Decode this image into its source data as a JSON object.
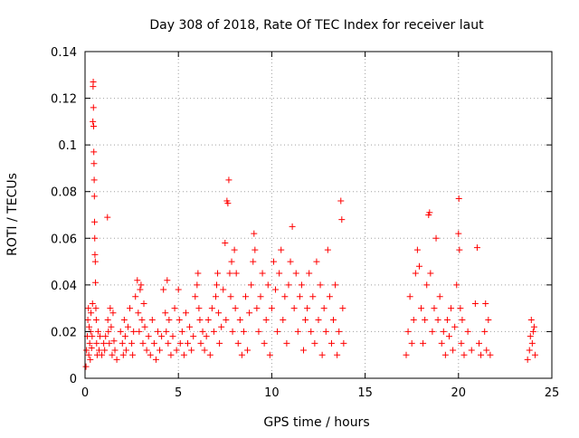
{
  "chart_data": {
    "type": "scatter",
    "title": "Day 308 of 2018, Rate Of TEC Index for receiver laut",
    "xlabel": "GPS time / hours",
    "ylabel": "ROTI / TECUs",
    "xlim": [
      0,
      25
    ],
    "ylim": [
      0,
      0.14
    ],
    "x_ticks": [
      0,
      5,
      10,
      15,
      20,
      25
    ],
    "x_tick_labels": [
      "0",
      "5",
      "10",
      "15",
      "20",
      "25"
    ],
    "y_ticks": [
      0,
      0.02,
      0.04,
      0.06,
      0.08,
      0.1,
      0.12,
      0.14
    ],
    "y_tick_labels": [
      "0",
      "0.02",
      "0.04",
      "0.06",
      "0.08",
      "0.1",
      "0.12",
      "0.14"
    ],
    "grid": true,
    "marker": "+",
    "marker_color": "#ff0000",
    "series": [
      {
        "name": "ROTI",
        "points": [
          [
            0.05,
            0.005
          ],
          [
            0.08,
            0.012
          ],
          [
            0.12,
            0.018
          ],
          [
            0.15,
            0.025
          ],
          [
            0.18,
            0.03
          ],
          [
            0.2,
            0.01
          ],
          [
            0.22,
            0.022
          ],
          [
            0.25,
            0.015
          ],
          [
            0.28,
            0.008
          ],
          [
            0.3,
            0.02
          ],
          [
            0.32,
            0.028
          ],
          [
            0.35,
            0.013
          ],
          [
            0.38,
            0.018
          ],
          [
            0.4,
            0.032
          ],
          [
            0.42,
            0.11
          ],
          [
            0.43,
            0.125
          ],
          [
            0.44,
            0.127
          ],
          [
            0.45,
            0.116
          ],
          [
            0.46,
            0.108
          ],
          [
            0.47,
            0.097
          ],
          [
            0.48,
            0.092
          ],
          [
            0.49,
            0.085
          ],
          [
            0.5,
            0.078
          ],
          [
            0.51,
            0.067
          ],
          [
            0.52,
            0.06
          ],
          [
            0.53,
            0.053
          ],
          [
            0.55,
            0.05
          ],
          [
            0.56,
            0.041
          ],
          [
            0.58,
            0.03
          ],
          [
            0.6,
            0.025
          ],
          [
            0.62,
            0.015
          ],
          [
            0.65,
            0.01
          ],
          [
            0.7,
            0.02
          ],
          [
            0.75,
            0.012
          ],
          [
            0.8,
            0.018
          ],
          [
            0.9,
            0.01
          ],
          [
            1.0,
            0.015
          ],
          [
            1.05,
            0.012
          ],
          [
            1.1,
            0.018
          ],
          [
            1.2,
            0.069
          ],
          [
            1.22,
            0.025
          ],
          [
            1.25,
            0.02
          ],
          [
            1.3,
            0.015
          ],
          [
            1.35,
            0.03
          ],
          [
            1.4,
            0.022
          ],
          [
            1.45,
            0.01
          ],
          [
            1.5,
            0.028
          ],
          [
            1.55,
            0.016
          ],
          [
            1.6,
            0.012
          ],
          [
            1.7,
            0.008
          ],
          [
            1.9,
            0.02
          ],
          [
            2.0,
            0.015
          ],
          [
            2.05,
            0.01
          ],
          [
            2.1,
            0.025
          ],
          [
            2.15,
            0.018
          ],
          [
            2.2,
            0.012
          ],
          [
            2.3,
            0.022
          ],
          [
            2.4,
            0.03
          ],
          [
            2.5,
            0.015
          ],
          [
            2.55,
            0.01
          ],
          [
            2.6,
            0.02
          ],
          [
            2.7,
            0.035
          ],
          [
            2.8,
            0.042
          ],
          [
            2.85,
            0.028
          ],
          [
            2.9,
            0.02
          ],
          [
            2.95,
            0.038
          ],
          [
            3.0,
            0.04
          ],
          [
            3.05,
            0.025
          ],
          [
            3.1,
            0.015
          ],
          [
            3.15,
            0.032
          ],
          [
            3.2,
            0.022
          ],
          [
            3.3,
            0.012
          ],
          [
            3.4,
            0.018
          ],
          [
            3.5,
            0.01
          ],
          [
            3.6,
            0.025
          ],
          [
            3.7,
            0.015
          ],
          [
            3.8,
            0.008
          ],
          [
            3.9,
            0.02
          ],
          [
            4.0,
            0.012
          ],
          [
            4.1,
            0.018
          ],
          [
            4.2,
            0.038
          ],
          [
            4.3,
            0.028
          ],
          [
            4.35,
            0.02
          ],
          [
            4.4,
            0.042
          ],
          [
            4.45,
            0.015
          ],
          [
            4.5,
            0.025
          ],
          [
            4.6,
            0.01
          ],
          [
            4.7,
            0.018
          ],
          [
            4.8,
            0.03
          ],
          [
            4.9,
            0.012
          ],
          [
            5.0,
            0.038
          ],
          [
            5.05,
            0.025
          ],
          [
            5.1,
            0.015
          ],
          [
            5.2,
            0.02
          ],
          [
            5.3,
            0.01
          ],
          [
            5.4,
            0.028
          ],
          [
            5.5,
            0.015
          ],
          [
            5.6,
            0.022
          ],
          [
            5.7,
            0.012
          ],
          [
            5.8,
            0.018
          ],
          [
            5.9,
            0.035
          ],
          [
            6.0,
            0.04
          ],
          [
            6.05,
            0.045
          ],
          [
            6.1,
            0.03
          ],
          [
            6.15,
            0.025
          ],
          [
            6.2,
            0.015
          ],
          [
            6.3,
            0.02
          ],
          [
            6.4,
            0.012
          ],
          [
            6.5,
            0.018
          ],
          [
            6.6,
            0.025
          ],
          [
            6.7,
            0.01
          ],
          [
            6.8,
            0.03
          ],
          [
            6.9,
            0.02
          ],
          [
            7.0,
            0.035
          ],
          [
            7.05,
            0.04
          ],
          [
            7.1,
            0.045
          ],
          [
            7.15,
            0.028
          ],
          [
            7.2,
            0.015
          ],
          [
            7.3,
            0.022
          ],
          [
            7.4,
            0.038
          ],
          [
            7.5,
            0.058
          ],
          [
            7.55,
            0.025
          ],
          [
            7.6,
            0.076
          ],
          [
            7.65,
            0.075
          ],
          [
            7.7,
            0.085
          ],
          [
            7.75,
            0.045
          ],
          [
            7.8,
            0.035
          ],
          [
            7.85,
            0.05
          ],
          [
            7.9,
            0.02
          ],
          [
            8.0,
            0.055
          ],
          [
            8.05,
            0.03
          ],
          [
            8.1,
            0.045
          ],
          [
            8.2,
            0.015
          ],
          [
            8.3,
            0.025
          ],
          [
            8.4,
            0.01
          ],
          [
            8.5,
            0.02
          ],
          [
            8.6,
            0.035
          ],
          [
            8.7,
            0.012
          ],
          [
            8.8,
            0.028
          ],
          [
            8.9,
            0.04
          ],
          [
            9.0,
            0.05
          ],
          [
            9.05,
            0.062
          ],
          [
            9.1,
            0.055
          ],
          [
            9.2,
            0.03
          ],
          [
            9.3,
            0.02
          ],
          [
            9.4,
            0.035
          ],
          [
            9.5,
            0.045
          ],
          [
            9.6,
            0.015
          ],
          [
            9.7,
            0.025
          ],
          [
            9.8,
            0.04
          ],
          [
            9.9,
            0.01
          ],
          [
            10.0,
            0.03
          ],
          [
            10.1,
            0.05
          ],
          [
            10.2,
            0.038
          ],
          [
            10.3,
            0.02
          ],
          [
            10.4,
            0.045
          ],
          [
            10.5,
            0.055
          ],
          [
            10.6,
            0.025
          ],
          [
            10.7,
            0.035
          ],
          [
            10.8,
            0.015
          ],
          [
            10.9,
            0.04
          ],
          [
            11.0,
            0.05
          ],
          [
            11.1,
            0.065
          ],
          [
            11.2,
            0.03
          ],
          [
            11.3,
            0.045
          ],
          [
            11.4,
            0.02
          ],
          [
            11.5,
            0.035
          ],
          [
            11.6,
            0.04
          ],
          [
            11.7,
            0.012
          ],
          [
            11.8,
            0.025
          ],
          [
            11.9,
            0.03
          ],
          [
            12.0,
            0.045
          ],
          [
            12.1,
            0.02
          ],
          [
            12.2,
            0.035
          ],
          [
            12.3,
            0.015
          ],
          [
            12.4,
            0.05
          ],
          [
            12.5,
            0.025
          ],
          [
            12.6,
            0.04
          ],
          [
            12.7,
            0.01
          ],
          [
            12.8,
            0.03
          ],
          [
            12.9,
            0.02
          ],
          [
            13.0,
            0.055
          ],
          [
            13.1,
            0.035
          ],
          [
            13.2,
            0.015
          ],
          [
            13.3,
            0.025
          ],
          [
            13.4,
            0.04
          ],
          [
            13.5,
            0.01
          ],
          [
            13.6,
            0.02
          ],
          [
            13.7,
            0.076
          ],
          [
            13.75,
            0.068
          ],
          [
            13.8,
            0.03
          ],
          [
            13.85,
            0.015
          ],
          [
            17.2,
            0.01
          ],
          [
            17.3,
            0.02
          ],
          [
            17.4,
            0.035
          ],
          [
            17.5,
            0.015
          ],
          [
            17.6,
            0.025
          ],
          [
            17.7,
            0.045
          ],
          [
            17.8,
            0.055
          ],
          [
            17.9,
            0.048
          ],
          [
            18.0,
            0.03
          ],
          [
            18.1,
            0.015
          ],
          [
            18.2,
            0.025
          ],
          [
            18.3,
            0.04
          ],
          [
            18.4,
            0.07
          ],
          [
            18.45,
            0.071
          ],
          [
            18.5,
            0.045
          ],
          [
            18.6,
            0.02
          ],
          [
            18.7,
            0.03
          ],
          [
            18.8,
            0.06
          ],
          [
            18.9,
            0.025
          ],
          [
            19.0,
            0.035
          ],
          [
            19.1,
            0.015
          ],
          [
            19.2,
            0.02
          ],
          [
            19.3,
            0.01
          ],
          [
            19.4,
            0.025
          ],
          [
            19.5,
            0.018
          ],
          [
            19.6,
            0.03
          ],
          [
            19.7,
            0.012
          ],
          [
            19.8,
            0.022
          ],
          [
            19.9,
            0.04
          ],
          [
            20.0,
            0.062
          ],
          [
            20.02,
            0.077
          ],
          [
            20.05,
            0.055
          ],
          [
            20.1,
            0.03
          ],
          [
            20.15,
            0.015
          ],
          [
            20.2,
            0.025
          ],
          [
            20.3,
            0.01
          ],
          [
            20.5,
            0.02
          ],
          [
            20.7,
            0.012
          ],
          [
            20.9,
            0.032
          ],
          [
            21.0,
            0.056
          ],
          [
            21.1,
            0.015
          ],
          [
            21.2,
            0.01
          ],
          [
            21.4,
            0.02
          ],
          [
            21.45,
            0.032
          ],
          [
            21.5,
            0.012
          ],
          [
            21.6,
            0.025
          ],
          [
            21.7,
            0.01
          ],
          [
            23.7,
            0.008
          ],
          [
            23.8,
            0.012
          ],
          [
            23.85,
            0.018
          ],
          [
            23.9,
            0.025
          ],
          [
            23.95,
            0.015
          ],
          [
            24.0,
            0.02
          ],
          [
            24.05,
            0.022
          ],
          [
            24.1,
            0.01
          ]
        ]
      }
    ]
  }
}
